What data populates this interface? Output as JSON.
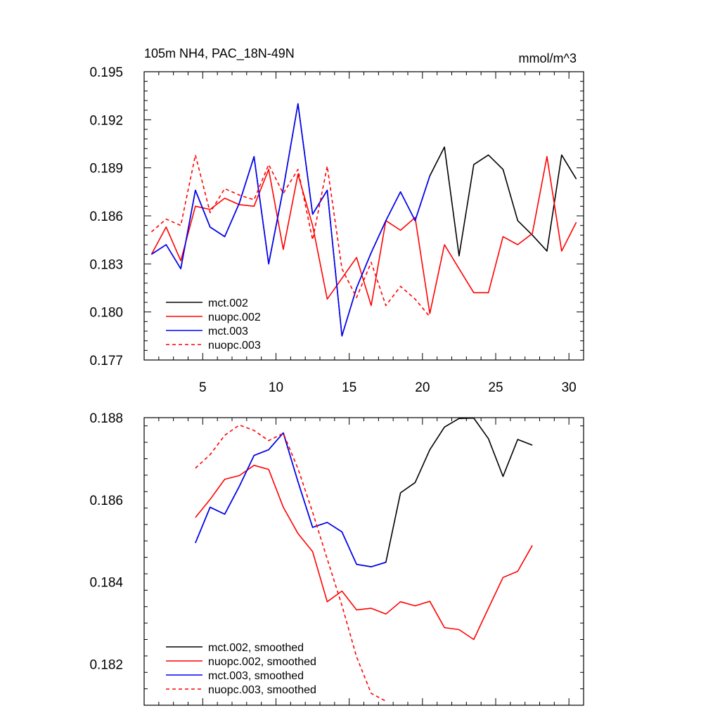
{
  "chart_data": [
    {
      "type": "line",
      "title": "105m NH4, PAC_18N-49N",
      "units": "mmol/m^3",
      "xlim": [
        1,
        31
      ],
      "ylim": [
        0.177,
        0.195
      ],
      "xticks": [
        "5",
        "10",
        "15",
        "20",
        "25",
        "30"
      ],
      "yticks": [
        "0.177",
        "0.180",
        "0.183",
        "0.186",
        "0.189",
        "0.192",
        "0.195"
      ],
      "legend_position": "bottom-left",
      "series": [
        {
          "name": "mct.002",
          "color": "#000000",
          "dash": "solid",
          "x": [
            1.5,
            2.5,
            3.5,
            4.5,
            5.5,
            6.5,
            7.5,
            8.5,
            9.5,
            10.5,
            11.5,
            12.5,
            13.5,
            14.5,
            15.5,
            16.5,
            17.5,
            18.5,
            19.5,
            20.5,
            21.5,
            22.5,
            23.5,
            24.5,
            25.5,
            26.5,
            27.5,
            28.5,
            29.5,
            30.5
          ],
          "y": [
            0.1836,
            0.1842,
            0.1827,
            0.1876,
            0.1853,
            0.1847,
            0.1868,
            0.1897,
            0.183,
            0.1877,
            0.193,
            0.1861,
            0.1876,
            0.1785,
            0.1815,
            0.1837,
            0.1857,
            0.1875,
            0.1857,
            0.1885,
            0.1903,
            0.1835,
            0.1892,
            0.1898,
            0.1889,
            0.1857,
            0.1848,
            0.1838,
            0.1898,
            0.1883
          ]
        },
        {
          "name": "nuopc.002",
          "color": "#ff0000",
          "dash": "solid",
          "x": [
            1.5,
            2.5,
            3.5,
            4.5,
            5.5,
            6.5,
            7.5,
            8.5,
            9.5,
            10.5,
            11.5,
            12.5,
            13.5,
            14.5,
            15.5,
            16.5,
            17.5,
            18.5,
            19.5,
            20.5,
            21.5,
            22.5,
            23.5,
            24.5,
            25.5,
            26.5,
            27.5,
            28.5,
            29.5,
            30.5
          ],
          "y": [
            0.1836,
            0.1853,
            0.1832,
            0.1866,
            0.1864,
            0.1871,
            0.1867,
            0.1866,
            0.1889,
            0.1839,
            0.1886,
            0.1854,
            0.1808,
            0.1821,
            0.1834,
            0.1804,
            0.1857,
            0.1851,
            0.1859,
            0.1799,
            0.1842,
            0.1827,
            0.1812,
            0.1812,
            0.1847,
            0.1842,
            0.1849,
            0.1897,
            0.1838,
            0.1856
          ]
        },
        {
          "name": "mct.003",
          "color": "#0000ff",
          "dash": "solid",
          "x": [
            1.5,
            2.5,
            3.5,
            4.5,
            5.5,
            6.5,
            7.5,
            8.5,
            9.5,
            10.5,
            11.5,
            12.5,
            13.5,
            14.5,
            15.5,
            16.5,
            17.5,
            18.5,
            19.5,
            20.5
          ],
          "y": [
            0.1836,
            0.1842,
            0.1827,
            0.1876,
            0.1853,
            0.1847,
            0.1868,
            0.1897,
            0.183,
            0.1877,
            0.193,
            0.1861,
            0.1876,
            0.1785,
            0.1815,
            0.1837,
            0.1857,
            0.1875,
            0.1857,
            0.1885
          ]
        },
        {
          "name": "nuopc.003",
          "color": "#ff0000",
          "dash": "dashed",
          "x": [
            1.5,
            2.5,
            3.5,
            4.5,
            5.5,
            6.5,
            7.5,
            8.5,
            9.5,
            10.5,
            11.5,
            12.5,
            13.5,
            14.5,
            15.5,
            16.5,
            17.5,
            18.5,
            19.5,
            20.5
          ],
          "y": [
            0.185,
            0.1858,
            0.1854,
            0.1898,
            0.1862,
            0.1877,
            0.1873,
            0.187,
            0.1892,
            0.1874,
            0.1889,
            0.1845,
            0.1891,
            0.1827,
            0.1809,
            0.1831,
            0.1804,
            0.1816,
            0.1808,
            0.1797
          ]
        }
      ]
    },
    {
      "type": "line",
      "xlim": [
        1,
        31
      ],
      "ylim": [
        0.181,
        0.188
      ],
      "xticks": [
        "5",
        "10",
        "15",
        "20",
        "25",
        "30"
      ],
      "yticks": [
        "0.182",
        "0.184",
        "0.186",
        "0.188"
      ],
      "legend_position": "bottom-left",
      "series": [
        {
          "name": "mct.002, smoothed",
          "color": "#000000",
          "dash": "solid",
          "x": [
            4.5,
            5.5,
            6.5,
            7.5,
            8.5,
            9.5,
            10.5,
            11.5,
            12.5,
            13.5,
            14.5,
            15.5,
            16.5,
            17.5,
            18.5,
            19.5,
            20.5,
            21.5,
            22.5,
            23.5,
            24.5,
            25.5,
            26.5,
            27.5
          ],
          "y": [
            0.18495,
            0.18582,
            0.18565,
            0.18633,
            0.18708,
            0.18722,
            0.18763,
            0.18644,
            0.18533,
            0.18545,
            0.18522,
            0.18443,
            0.18437,
            0.18448,
            0.18617,
            0.18642,
            0.18722,
            0.18777,
            0.18798,
            0.18799,
            0.18749,
            0.18657,
            0.18747,
            0.18733
          ]
        },
        {
          "name": "nuopc.002, smoothed",
          "color": "#ff0000",
          "dash": "solid",
          "x": [
            4.5,
            5.5,
            6.5,
            7.5,
            8.5,
            9.5,
            10.5,
            11.5,
            12.5,
            13.5,
            14.5,
            15.5,
            16.5,
            17.5,
            18.5,
            19.5,
            20.5,
            21.5,
            22.5,
            23.5,
            24.5,
            25.5,
            26.5,
            27.5
          ],
          "y": [
            0.18557,
            0.18601,
            0.1865,
            0.18659,
            0.18684,
            0.18674,
            0.18582,
            0.18518,
            0.18474,
            0.18352,
            0.18378,
            0.18332,
            0.18336,
            0.18322,
            0.18352,
            0.18342,
            0.18353,
            0.18289,
            0.18284,
            0.1826,
            0.18336,
            0.18411,
            0.18426,
            0.18489
          ]
        },
        {
          "name": "mct.003, smoothed",
          "color": "#0000ff",
          "dash": "solid",
          "x": [
            4.5,
            5.5,
            6.5,
            7.5,
            8.5,
            9.5,
            10.5,
            11.5,
            12.5,
            13.5,
            14.5,
            15.5,
            16.5,
            17.5
          ],
          "y": [
            0.18495,
            0.18582,
            0.18565,
            0.18633,
            0.18708,
            0.18722,
            0.18763,
            0.18644,
            0.18533,
            0.18545,
            0.18522,
            0.18443,
            0.18437,
            0.18448
          ]
        },
        {
          "name": "nuopc.003, smoothed",
          "color": "#ff0000",
          "dash": "dashed",
          "x": [
            4.5,
            5.5,
            6.5,
            7.5,
            8.5,
            9.5,
            10.5,
            11.5,
            12.5,
            13.5,
            14.5,
            15.5,
            16.5,
            17.5
          ],
          "y": [
            0.18677,
            0.1871,
            0.18757,
            0.18782,
            0.18769,
            0.18744,
            0.18762,
            0.18676,
            0.1857,
            0.18456,
            0.18343,
            0.18218,
            0.18129,
            0.1811
          ]
        }
      ]
    }
  ]
}
